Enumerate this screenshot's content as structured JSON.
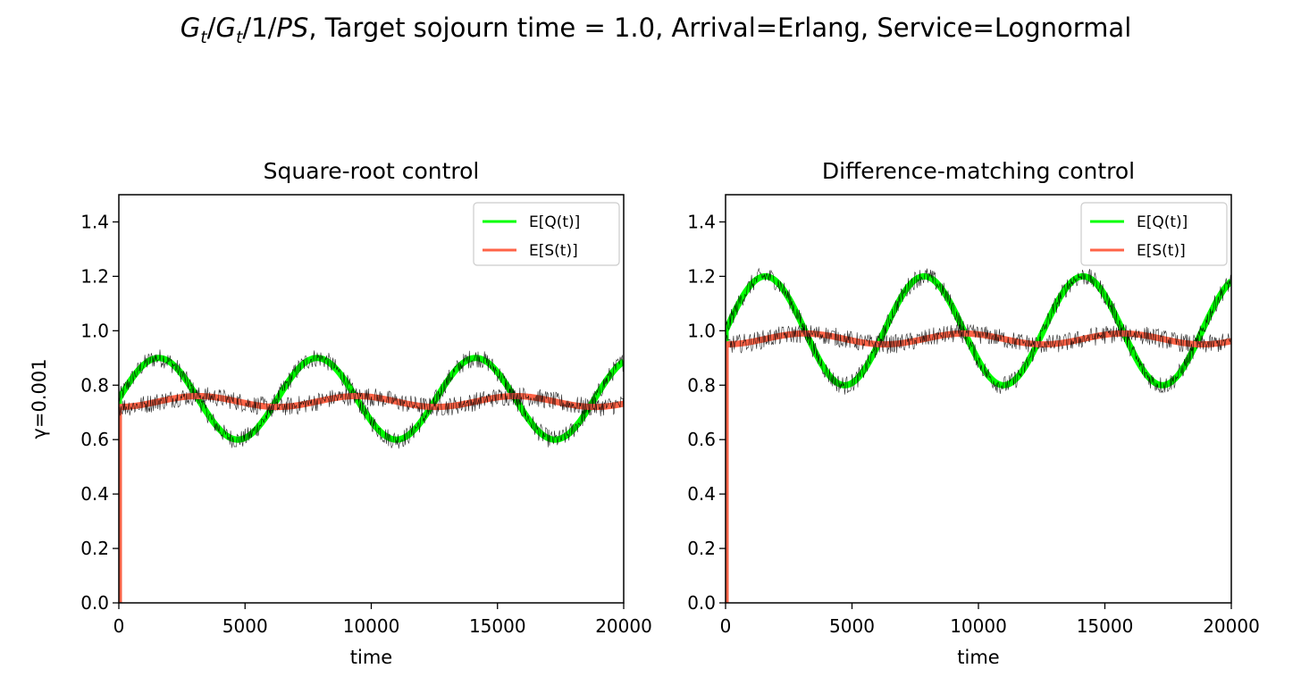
{
  "figure": {
    "title_prefix_italic": "G",
    "title_sub1": "t",
    "title_slash": "/",
    "title_sub2": "t",
    "title_mid": "/1/",
    "title_ps": "PS",
    "title_rest": ", Target sojourn time = 1.0, Arrival=Erlang, Service=Lognormal",
    "colors": {
      "queue": "#00ff00",
      "sojourn": "#ff6347",
      "noise": "#000000"
    }
  },
  "chart_data": [
    {
      "type": "line",
      "title": "Square-root control",
      "xlabel": "time",
      "ylabel": "γ=0.001",
      "xlim": [
        0,
        20000
      ],
      "ylim": [
        0,
        1.5
      ],
      "xticks": [
        "0",
        "5000",
        "10000",
        "15000",
        "20000"
      ],
      "yticks": [
        "0.0",
        "0.2",
        "0.4",
        "0.6",
        "0.8",
        "1.0",
        "1.2",
        "1.4"
      ],
      "legend_position": "top-right",
      "series": [
        {
          "name": "E[Q(t)]",
          "color": "#00ff00",
          "mean": 0.75,
          "amplitude": 0.15,
          "period": 6283,
          "phase_shift": 0,
          "x": [
            0,
            1570,
            4712,
            7854,
            10996,
            14137,
            17279,
            20000
          ],
          "values": [
            0.75,
            0.9,
            0.6,
            0.9,
            0.6,
            0.9,
            0.6,
            0.87
          ]
        },
        {
          "name": "E[S(t)]",
          "color": "#ff6347",
          "mean": 0.74,
          "amplitude": 0.02,
          "period": 6283,
          "phase_shift": 1.57,
          "x": [
            0,
            1570,
            4712,
            7854,
            10996,
            14137,
            17279,
            20000
          ],
          "values": [
            0.72,
            0.74,
            0.76,
            0.72,
            0.76,
            0.72,
            0.76,
            0.72
          ]
        }
      ]
    },
    {
      "type": "line",
      "title": "Difference-matching control",
      "xlabel": "time",
      "ylabel": "",
      "xlim": [
        0,
        20000
      ],
      "ylim": [
        0,
        1.5
      ],
      "xticks": [
        "0",
        "5000",
        "10000",
        "15000",
        "20000"
      ],
      "yticks": [
        "0.0",
        "0.2",
        "0.4",
        "0.6",
        "0.8",
        "1.0",
        "1.2",
        "1.4"
      ],
      "legend_position": "top-right",
      "series": [
        {
          "name": "E[Q(t)]",
          "color": "#00ff00",
          "mean": 1.0,
          "amplitude": 0.2,
          "period": 6283,
          "phase_shift": 0,
          "x": [
            0,
            1570,
            4712,
            7854,
            10996,
            14137,
            17279,
            20000
          ],
          "values": [
            1.0,
            1.2,
            0.8,
            1.2,
            0.8,
            1.2,
            0.8,
            1.18
          ]
        },
        {
          "name": "E[S(t)]",
          "color": "#ff6347",
          "mean": 0.97,
          "amplitude": 0.02,
          "period": 6283,
          "phase_shift": 1.57,
          "x": [
            0,
            1570,
            4712,
            7854,
            10996,
            14137,
            17279,
            20000
          ],
          "values": [
            0.95,
            0.97,
            0.99,
            0.95,
            0.99,
            0.95,
            0.99,
            0.95
          ]
        }
      ]
    }
  ]
}
